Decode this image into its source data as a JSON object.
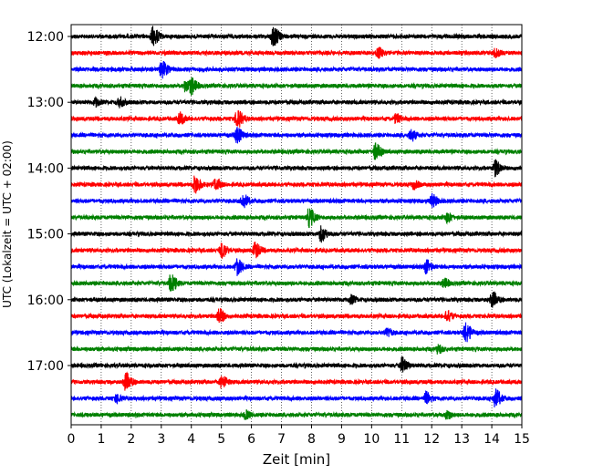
{
  "chart_data": {
    "type": "line",
    "title": "",
    "xlabel": "Zeit  [min]",
    "ylabel": "UTC (Lokalzeit = UTC + 02:00)",
    "xlim": [
      0,
      15
    ],
    "x_ticks": [
      "0",
      "1",
      "2",
      "3",
      "4",
      "5",
      "6",
      "7",
      "8",
      "9",
      "10",
      "11",
      "12",
      "13",
      "14",
      "15"
    ],
    "y_ticks": [
      "12:00",
      "13:00",
      "14:00",
      "15:00",
      "16:00",
      "17:00"
    ],
    "grid": "vertical dotted at each minute",
    "legend": "none",
    "colors": [
      "#000000",
      "#ff0000",
      "#0000ff",
      "#008000"
    ],
    "series": [
      {
        "start": "12:00",
        "events": [
          [
            2.7,
            1.6
          ],
          [
            6.7,
            1.7
          ]
        ]
      },
      {
        "start": "12:15",
        "events": [
          [
            10.2,
            0.9
          ],
          [
            14.1,
            0.7
          ]
        ]
      },
      {
        "start": "12:30",
        "events": [
          [
            3.0,
            1.5
          ]
        ]
      },
      {
        "start": "12:45",
        "events": [
          [
            3.8,
            1.0
          ],
          [
            4.0,
            1.2
          ]
        ]
      },
      {
        "start": "13:00",
        "events": [
          [
            0.8,
            0.7
          ],
          [
            1.6,
            0.8
          ]
        ]
      },
      {
        "start": "13:15",
        "events": [
          [
            3.6,
            1.0
          ],
          [
            5.5,
            1.6
          ],
          [
            10.8,
            0.8
          ]
        ]
      },
      {
        "start": "13:30",
        "events": [
          [
            5.5,
            1.3
          ],
          [
            11.3,
            1.0
          ]
        ]
      },
      {
        "start": "13:45",
        "events": [
          [
            10.1,
            1.4
          ]
        ]
      },
      {
        "start": "14:00",
        "events": [
          [
            14.1,
            1.3
          ]
        ]
      },
      {
        "start": "14:15",
        "events": [
          [
            4.1,
            1.5
          ],
          [
            4.8,
            1.0
          ],
          [
            11.4,
            0.7
          ]
        ]
      },
      {
        "start": "14:30",
        "events": [
          [
            5.7,
            1.2
          ],
          [
            12.0,
            1.1
          ]
        ]
      },
      {
        "start": "14:45",
        "events": [
          [
            7.9,
            1.6
          ],
          [
            12.5,
            0.8
          ]
        ]
      },
      {
        "start": "15:00",
        "events": [
          [
            8.3,
            1.3
          ]
        ]
      },
      {
        "start": "15:15",
        "events": [
          [
            5.0,
            1.2
          ],
          [
            6.1,
            1.3
          ]
        ]
      },
      {
        "start": "15:30",
        "events": [
          [
            5.5,
            1.4
          ],
          [
            11.8,
            1.1
          ]
        ]
      },
      {
        "start": "15:45",
        "events": [
          [
            3.3,
            1.5
          ],
          [
            12.4,
            0.8
          ]
        ]
      },
      {
        "start": "16:00",
        "events": [
          [
            9.3,
            0.7
          ],
          [
            14.0,
            1.3
          ]
        ]
      },
      {
        "start": "16:15",
        "events": [
          [
            4.9,
            1.3
          ],
          [
            12.5,
            0.9
          ]
        ]
      },
      {
        "start": "16:30",
        "events": [
          [
            10.5,
            0.8
          ],
          [
            13.1,
            1.7
          ]
        ]
      },
      {
        "start": "16:45",
        "events": [
          [
            12.2,
            0.7
          ]
        ]
      },
      {
        "start": "17:00",
        "events": [
          [
            11.0,
            1.3
          ]
        ]
      },
      {
        "start": "17:15",
        "events": [
          [
            1.8,
            1.5
          ],
          [
            5.0,
            1.1
          ]
        ]
      },
      {
        "start": "17:30",
        "events": [
          [
            1.5,
            0.7
          ],
          [
            11.8,
            1.0
          ],
          [
            14.1,
            1.5
          ]
        ]
      },
      {
        "start": "17:45",
        "events": [
          [
            5.8,
            0.7
          ],
          [
            12.5,
            0.7
          ]
        ]
      }
    ]
  }
}
